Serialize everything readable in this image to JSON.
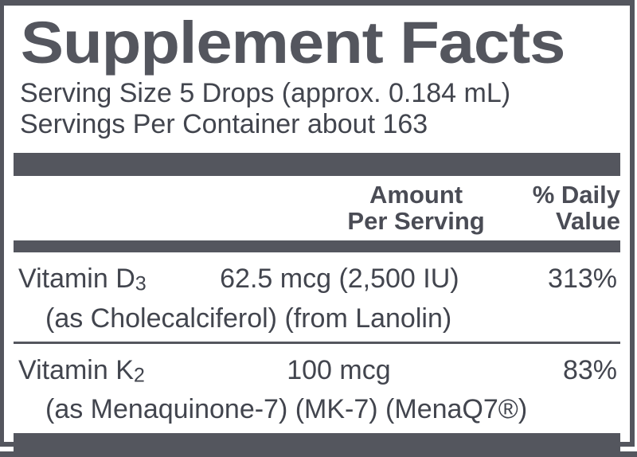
{
  "colors": {
    "panel_dark": "#54565E",
    "body_text": "#42454E",
    "background": "#FFFFFF"
  },
  "title": "Supplement Facts",
  "serving_info": {
    "serving_size": "Serving Size 5 Drops (approx. 0.184 mL)",
    "servings_per_container": "Servings Per Container about 163"
  },
  "header": {
    "amount_line1": "Amount",
    "amount_line2": "Per Serving",
    "dv_line1": "% Daily",
    "dv_line2": "Value"
  },
  "rows": [
    {
      "name_prefix": "Vitamin D",
      "name_subscript": "3",
      "amount": "62.5 mcg (2,500 IU)",
      "daily_value": "313%",
      "detail": "(as Cholecalciferol) (from Lanolin)"
    },
    {
      "name_prefix": "Vitamin K",
      "name_subscript": "2",
      "amount": "100 mcg",
      "daily_value": "83%",
      "detail": "(as Menaquinone-7) (MK-7) (MenaQ7®)"
    }
  ]
}
